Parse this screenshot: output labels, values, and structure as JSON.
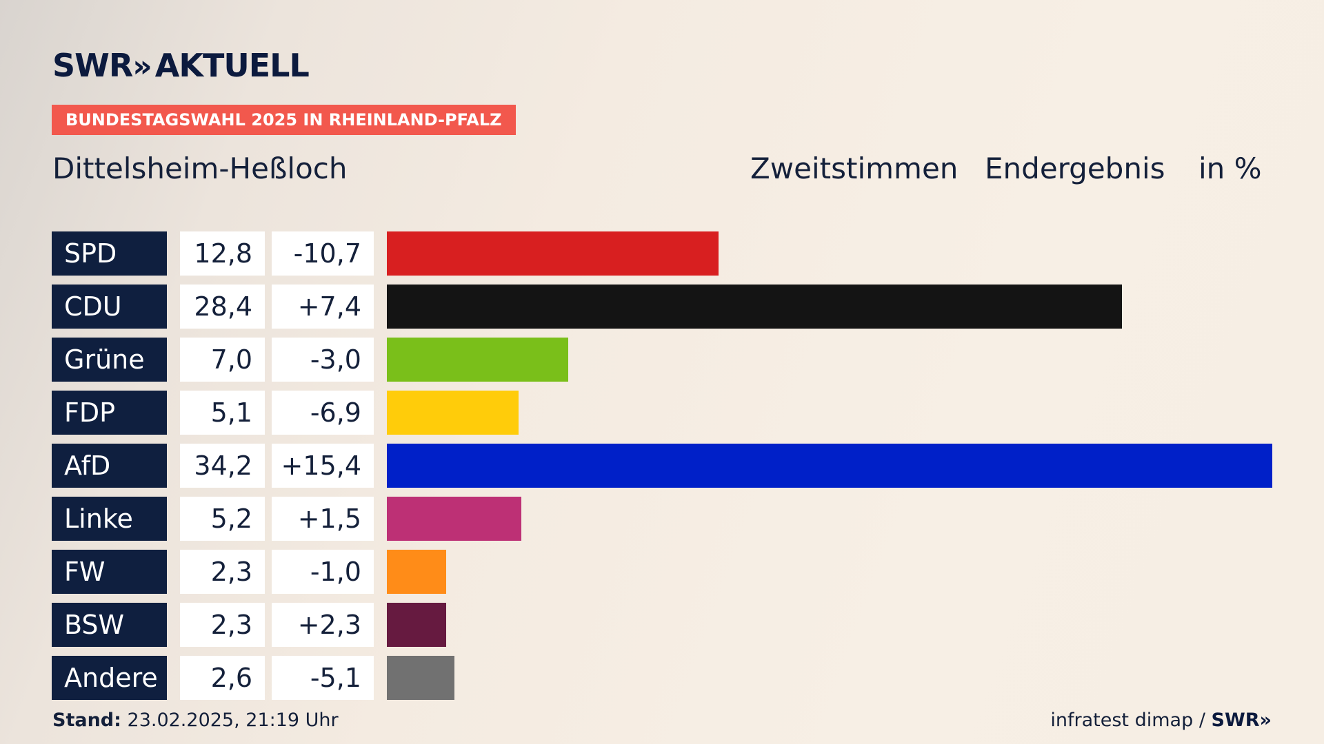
{
  "brand": {
    "logo_text": "SWR",
    "logo_chevrons": "»",
    "logo_suffix": "AKTUELL"
  },
  "badge": "BUNDESTAGSWAHL 2025 IN RHEINLAND-PFALZ",
  "place": "Dittelsheim-Heßloch",
  "header": {
    "vote_type": "Zweitstimmen",
    "result_type": "Endergebnis",
    "unit": "in %"
  },
  "colors": {
    "SPD": "#d81f20",
    "CDU": "#141414",
    "Grüne": "#7abf1a",
    "FDP": "#ffcc0a",
    "AfD": "#0020c8",
    "Linke": "#bd3075",
    "FW": "#ff8c18",
    "BSW": "#661a40",
    "Andere": "#717171"
  },
  "chart_data": {
    "type": "bar",
    "orientation": "horizontal",
    "title": "Dittelsheim-Heßloch",
    "subtitle": "Zweitstimmen Endergebnis in %",
    "categories": [
      "SPD",
      "CDU",
      "Grüne",
      "FDP",
      "AfD",
      "Linke",
      "FW",
      "BSW",
      "Andere"
    ],
    "values": [
      12.8,
      28.4,
      7.0,
      5.1,
      34.2,
      5.2,
      2.3,
      2.3,
      2.6
    ],
    "value_labels": [
      "12,8",
      "28,4",
      "7,0",
      "5,1",
      "34,2",
      "5,2",
      "2,3",
      "2,3",
      "2,6"
    ],
    "diff_labels": [
      "-10,7",
      "+7,4",
      "-3,0",
      "-6,9",
      "+15,4",
      "+1,5",
      "-1,0",
      "+2,3",
      "-5,1"
    ],
    "xlim": [
      0,
      34.2
    ],
    "grid": false
  },
  "footer": {
    "stand_label": "Stand:",
    "stand_value": "23.02.2025, 21:19 Uhr",
    "source": "infratest dimap /",
    "source_logo": "SWR",
    "source_logo_chevrons": "»"
  }
}
